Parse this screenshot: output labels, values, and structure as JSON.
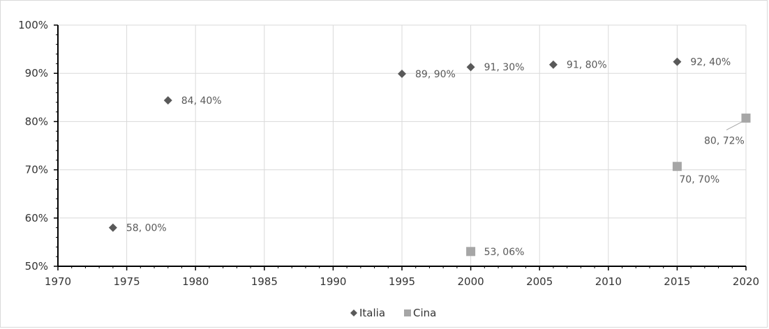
{
  "chart_data": {
    "type": "scatter",
    "title": "",
    "xlabel": "",
    "ylabel": "",
    "xlim": [
      1970,
      2020
    ],
    "ylim": [
      50,
      100
    ],
    "x_ticks": [
      "1970",
      "1975",
      "1980",
      "1985",
      "1990",
      "1995",
      "2000",
      "2005",
      "2010",
      "2015",
      "2020"
    ],
    "y_ticks": [
      "50%",
      "60%",
      "70%",
      "80%",
      "90%",
      "100%"
    ],
    "grid": true,
    "legend_position": "bottom",
    "series": [
      {
        "name": "Italia",
        "marker": "diamond",
        "color": "#595959",
        "points": [
          {
            "x": 1974,
            "y": 58.0,
            "label": "58, 00%"
          },
          {
            "x": 1978,
            "y": 84.4,
            "label": "84, 40%"
          },
          {
            "x": 1995,
            "y": 89.9,
            "label": "89, 90%"
          },
          {
            "x": 2000,
            "y": 91.3,
            "label": "91, 30%"
          },
          {
            "x": 2006,
            "y": 91.8,
            "label": "91, 80%"
          },
          {
            "x": 2015,
            "y": 92.4,
            "label": "92, 40%"
          }
        ]
      },
      {
        "name": "Cina",
        "marker": "square",
        "color": "#a6a6a6",
        "points": [
          {
            "x": 2000,
            "y": 53.06,
            "label": "53, 06%"
          },
          {
            "x": 2015,
            "y": 70.7,
            "label": "70, 70%"
          },
          {
            "x": 2020,
            "y": 80.72,
            "label": "80, 72%"
          }
        ]
      }
    ]
  }
}
